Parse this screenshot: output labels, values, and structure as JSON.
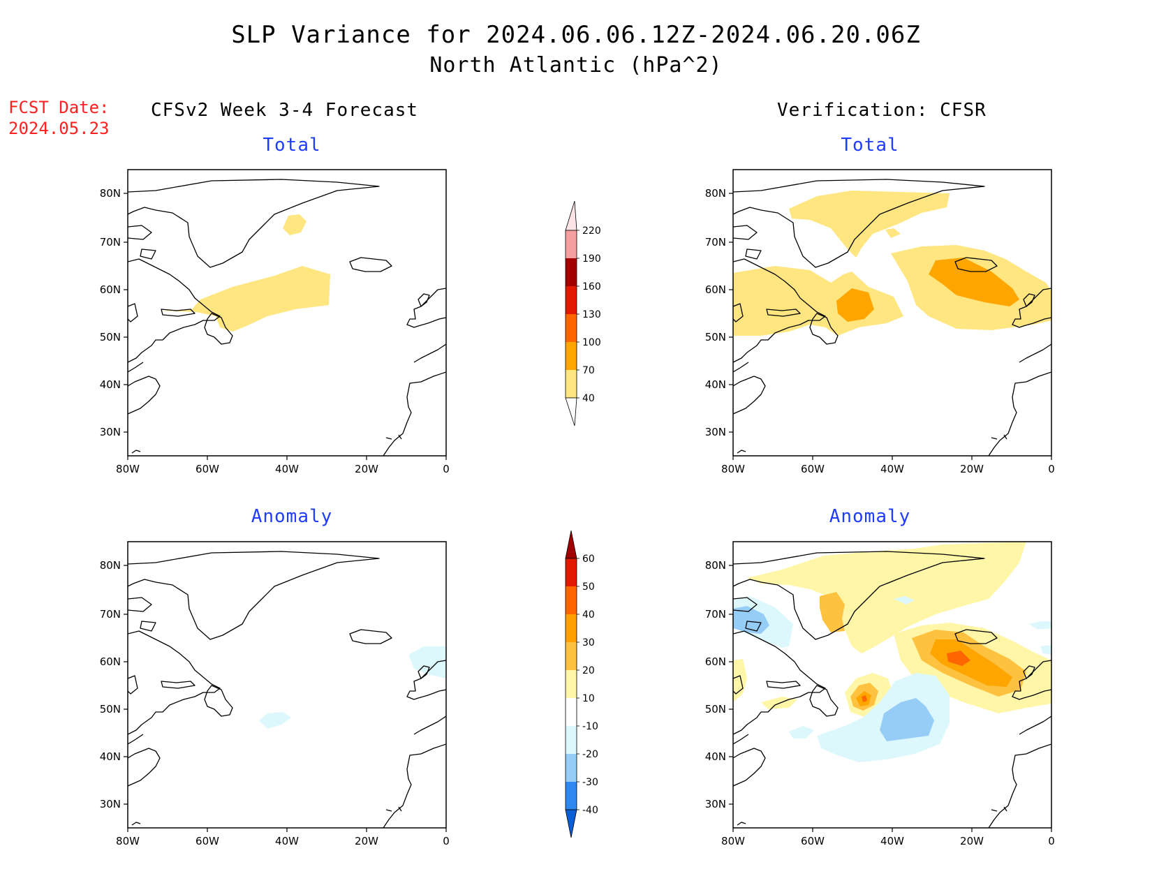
{
  "title_line1": "SLP Variance for 2024.06.06.12Z-2024.06.20.06Z",
  "title_line2": "North Atlantic (hPa^2)",
  "fcst_label": "FCST Date:",
  "fcst_date": "2024.05.23",
  "left_column_title": "CFSv2 Week 3-4 Forecast",
  "right_column_title": "Verification: CFSR",
  "panels": {
    "forecast_total": "Total",
    "forecast_anomaly": "Anomaly",
    "verification_total": "Total",
    "verification_anomaly": "Anomaly"
  },
  "map_axes": {
    "lon_ticks": [
      "80W",
      "60W",
      "40W",
      "20W",
      "0"
    ],
    "lat_ticks": [
      "80N",
      "70N",
      "60N",
      "50N",
      "40N",
      "30N"
    ]
  },
  "chart_data": [
    {
      "type": "colorbar",
      "id": "total_scale",
      "levels": [
        40,
        70,
        100,
        130,
        160,
        190,
        220
      ],
      "colors": [
        "#ffe680",
        "#ffa500",
        "#ff6600",
        "#e01a00",
        "#a30000",
        "#f4a0a0",
        "#fde4e4"
      ]
    },
    {
      "type": "colorbar",
      "id": "anomaly_scale",
      "levels": [
        -40,
        -30,
        -20,
        -10,
        10,
        20,
        30,
        40,
        50,
        60
      ],
      "colors": [
        "#0a5fd6",
        "#2e88f0",
        "#5fb0f5",
        "#96cdf7",
        "#dcf8fc",
        "#ffffff",
        "#fff6a8",
        "#ffc240",
        "#ffa000",
        "#ff6600",
        "#e01a00",
        "#a00000"
      ]
    }
  ],
  "colors": {
    "yellow": "#ffe680",
    "light_yellow": "#fff6a8",
    "gold": "#ffc240",
    "orange": "#ffa500",
    "dark_orange": "#ff6600",
    "light_cyan": "#dcf8fc",
    "light_blue": "#96cdf7",
    "blue": "#5fb0f5"
  }
}
